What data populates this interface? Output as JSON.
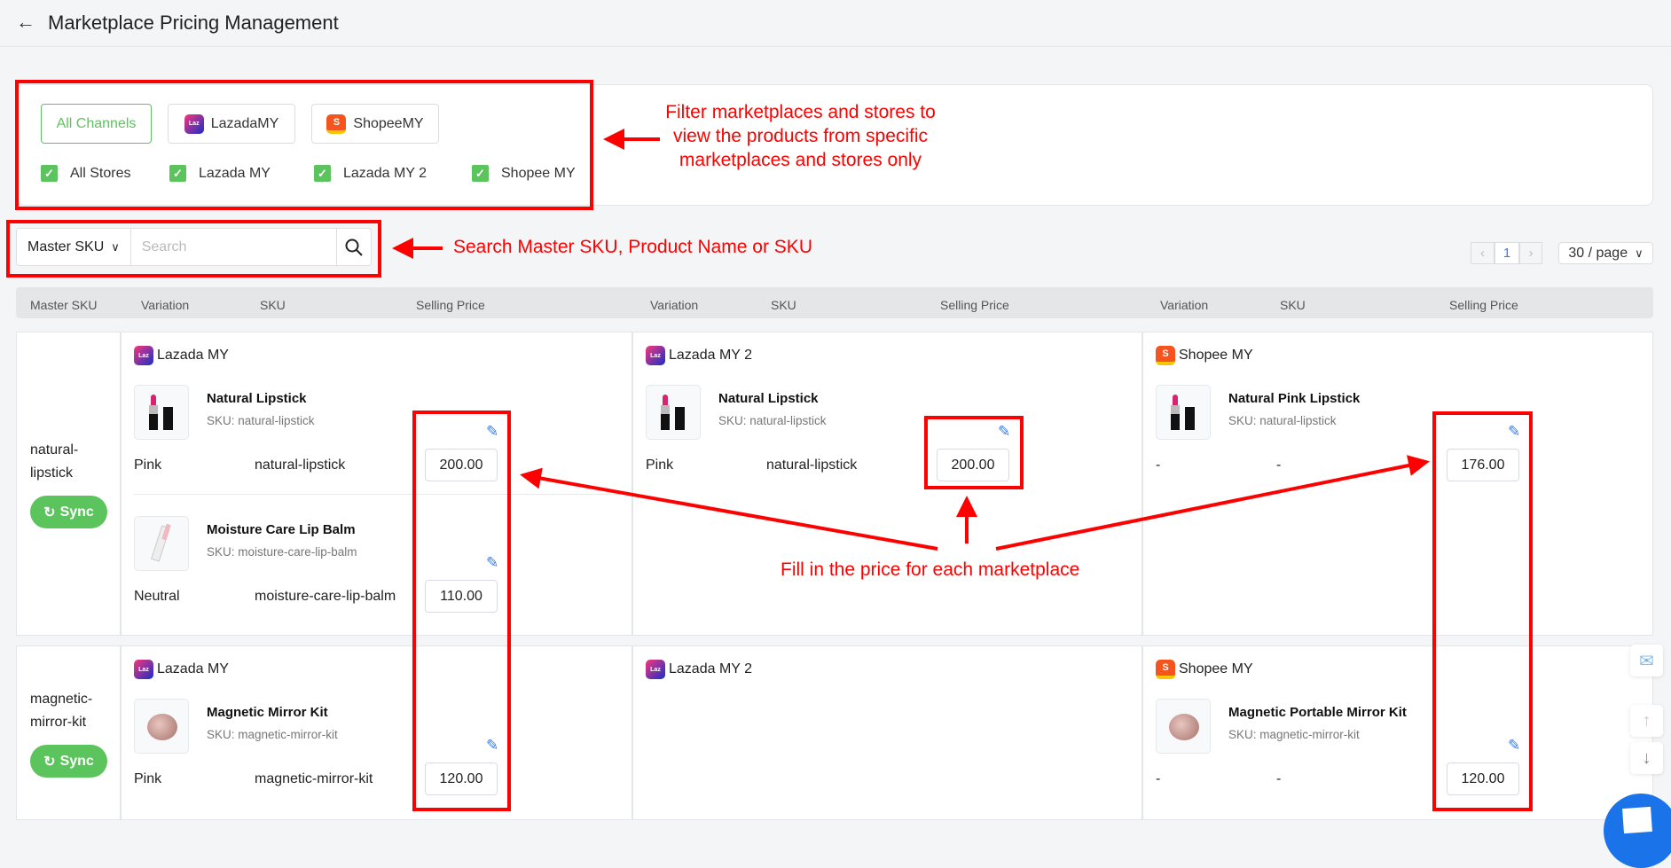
{
  "header": {
    "title": "Marketplace Pricing Management",
    "back_icon": "arrow-left-icon"
  },
  "filters": {
    "channels": [
      {
        "label": "All Channels",
        "active": true
      },
      {
        "label": "LazadaMY",
        "logo": "lazada"
      },
      {
        "label": "ShopeeMY",
        "logo": "shopee"
      }
    ],
    "stores": [
      {
        "label": "All Stores",
        "checked": true
      },
      {
        "label": "Lazada MY",
        "checked": true
      },
      {
        "label": "Lazada MY 2",
        "checked": true
      },
      {
        "label": "Shopee MY",
        "checked": true
      }
    ]
  },
  "search": {
    "field": "Master SKU",
    "placeholder": "Search"
  },
  "pagination": {
    "page": "1",
    "per_page": "30 / page"
  },
  "table": {
    "headers": [
      "Master SKU",
      "Variation",
      "SKU",
      "Selling Price",
      "Variation",
      "SKU",
      "Selling Price",
      "Variation",
      "SKU",
      "Selling Price"
    ]
  },
  "rows": [
    {
      "master_sku": "natural-\nlipstick",
      "sync_label": "Sync",
      "stores": [
        {
          "store": "Lazada MY",
          "channel": "lazada",
          "products": [
            {
              "name": "Natural Lipstick",
              "sku_label": "SKU: natural-lipstick",
              "variation": "Pink",
              "sku": "natural-lipstick",
              "price": "200.00",
              "image": "lipstick"
            },
            {
              "name": "Moisture Care Lip Balm",
              "sku_label": "SKU: moisture-care-lip-balm",
              "variation": "Neutral",
              "sku": "moisture-care-lip-balm",
              "price": "110.00",
              "image": "lipbalm"
            }
          ]
        },
        {
          "store": "Lazada MY 2",
          "channel": "lazada",
          "products": [
            {
              "name": "Natural Lipstick",
              "sku_label": "SKU: natural-lipstick",
              "variation": "Pink",
              "sku": "natural-lipstick",
              "price": "200.00",
              "image": "lipstick"
            }
          ]
        },
        {
          "store": "Shopee MY",
          "channel": "shopee",
          "products": [
            {
              "name": "Natural Pink Lipstick",
              "sku_label": "SKU: natural-lipstick",
              "variation": "-",
              "sku": "-",
              "price": "176.00",
              "image": "lipstick"
            }
          ]
        }
      ]
    },
    {
      "master_sku": "magnetic-\nmirror-kit",
      "sync_label": "Sync",
      "stores": [
        {
          "store": "Lazada MY",
          "channel": "lazada",
          "products": [
            {
              "name": "Magnetic Mirror Kit",
              "sku_label": "SKU: magnetic-mirror-kit",
              "variation": "Pink",
              "sku": "magnetic-mirror-kit",
              "price": "120.00",
              "image": "mirror"
            }
          ]
        },
        {
          "store": "Lazada MY 2",
          "channel": "lazada",
          "products": []
        },
        {
          "store": "Shopee MY",
          "channel": "shopee",
          "products": [
            {
              "name": "Magnetic Portable Mirror Kit",
              "sku_label": "SKU: magnetic-mirror-kit",
              "variation": "-",
              "sku": "-",
              "price": "120.00",
              "image": "mirror"
            }
          ]
        }
      ]
    }
  ],
  "annotations": {
    "filter_note": "Filter marketplaces and stores to view the products from specific marketplaces and stores only",
    "search_note": "Search Master SKU, Product Name or SKU",
    "price_note": "Fill in the price for each marketplace",
    "color": "#ff0000"
  },
  "colors": {
    "accent": "#5cc45c",
    "link": "#3a7bea"
  }
}
